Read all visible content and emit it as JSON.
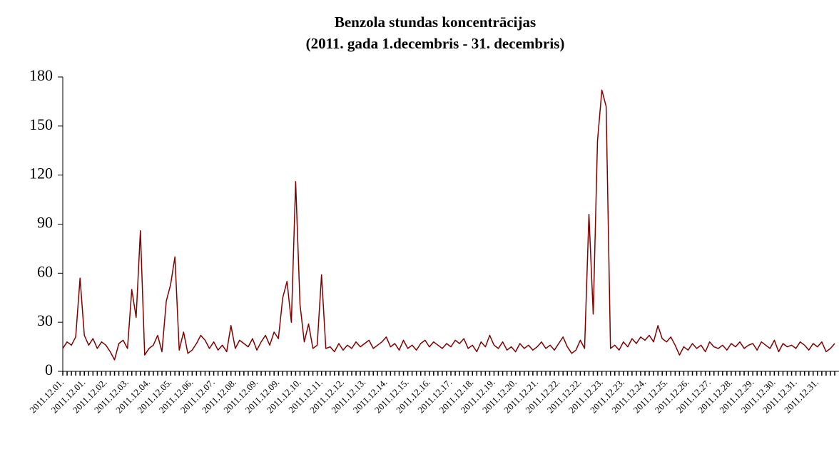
{
  "chart_data": {
    "type": "line",
    "title": "Benzola stundas koncentrācijas",
    "subtitle": "(2011. gada 1.decembris - 31. decembris)",
    "categories": [
      "2011.12.01.",
      null,
      null,
      null,
      null,
      "2011.12.01.",
      null,
      null,
      null,
      null,
      "2011.12.02.",
      null,
      null,
      null,
      null,
      "2011.12.03.",
      null,
      null,
      null,
      null,
      "2011.12.04.",
      null,
      null,
      null,
      null,
      "2011.12.05.",
      null,
      null,
      null,
      null,
      "2011.12.06.",
      null,
      null,
      null,
      null,
      "2011.12.07.",
      null,
      null,
      null,
      null,
      "2011.12.08.",
      null,
      null,
      null,
      null,
      "2011.12.09.",
      null,
      null,
      null,
      null,
      "2011.12.09.",
      null,
      null,
      null,
      null,
      "2011.12.10.",
      null,
      null,
      null,
      null,
      "2011.12.11.",
      null,
      null,
      null,
      null,
      "2011.12.12.",
      null,
      null,
      null,
      null,
      "2011.12.13.",
      null,
      null,
      null,
      null,
      "2011.12.14.",
      null,
      null,
      null,
      null,
      "2011.12.15.",
      null,
      null,
      null,
      null,
      "2011.12.16.",
      null,
      null,
      null,
      null,
      "2011.12.17.",
      null,
      null,
      null,
      null,
      "2011.12.18.",
      null,
      null,
      null,
      null,
      "2011.12.19.",
      null,
      null,
      null,
      null,
      "2011.12.20.",
      null,
      null,
      null,
      null,
      "2011.12.21.",
      null,
      null,
      null,
      null,
      "2011.12.22.",
      null,
      null,
      null,
      null,
      "2011.12.22.",
      null,
      null,
      null,
      null,
      "2011.12.23.",
      null,
      null,
      null,
      null,
      "2011.12.23.",
      null,
      null,
      null,
      null,
      "2011.12.24.",
      null,
      null,
      null,
      null,
      "2011.12.25.",
      null,
      null,
      null,
      null,
      "2011.12.26.",
      null,
      null,
      null,
      null,
      "2011.12.27.",
      null,
      null,
      null,
      null,
      "2011.12.28.",
      null,
      null,
      null,
      null,
      "2011.12.29.",
      null,
      null,
      null,
      null,
      "2011.12.30.",
      null,
      null,
      null,
      null,
      "2011.12.31.",
      null,
      null,
      null,
      null,
      "2011.12.31.",
      null,
      null,
      null,
      null
    ],
    "values": [
      14,
      18,
      16,
      21,
      57,
      22,
      16,
      20,
      14,
      18,
      16,
      12,
      7,
      17,
      19,
      14,
      50,
      33,
      86,
      10,
      14,
      16,
      22,
      12,
      43,
      53,
      70,
      13,
      24,
      11,
      13,
      17,
      22,
      19,
      14,
      18,
      13,
      16,
      12,
      28,
      14,
      19,
      17,
      15,
      20,
      13,
      18,
      22,
      16,
      24,
      20,
      45,
      55,
      30,
      116,
      41,
      18,
      29,
      14,
      16,
      59,
      14,
      15,
      12,
      17,
      13,
      16,
      14,
      18,
      15,
      17,
      19,
      14,
      16,
      18,
      21,
      15,
      17,
      13,
      19,
      14,
      16,
      13,
      17,
      19,
      15,
      18,
      16,
      14,
      17,
      15,
      19,
      17,
      20,
      14,
      16,
      12,
      18,
      15,
      22,
      16,
      14,
      18,
      13,
      15,
      12,
      17,
      14,
      16,
      13,
      15,
      18,
      14,
      16,
      13,
      17,
      21,
      15,
      11,
      13,
      19,
      14,
      96,
      35,
      141,
      172,
      162,
      14,
      16,
      13,
      18,
      15,
      20,
      17,
      21,
      19,
      22,
      18,
      28,
      20,
      18,
      21,
      16,
      10,
      15,
      13,
      17,
      14,
      16,
      12,
      18,
      15,
      14,
      16,
      13,
      17,
      15,
      18,
      14,
      16,
      17,
      13,
      18,
      16,
      14,
      19,
      12,
      17,
      15,
      16,
      14,
      18,
      16,
      13,
      17,
      15,
      18,
      12,
      14,
      17
    ],
    "color": "#800000",
    "ylim": [
      0,
      180
    ],
    "yticks": [
      0,
      30,
      60,
      90,
      120,
      150,
      180
    ]
  }
}
